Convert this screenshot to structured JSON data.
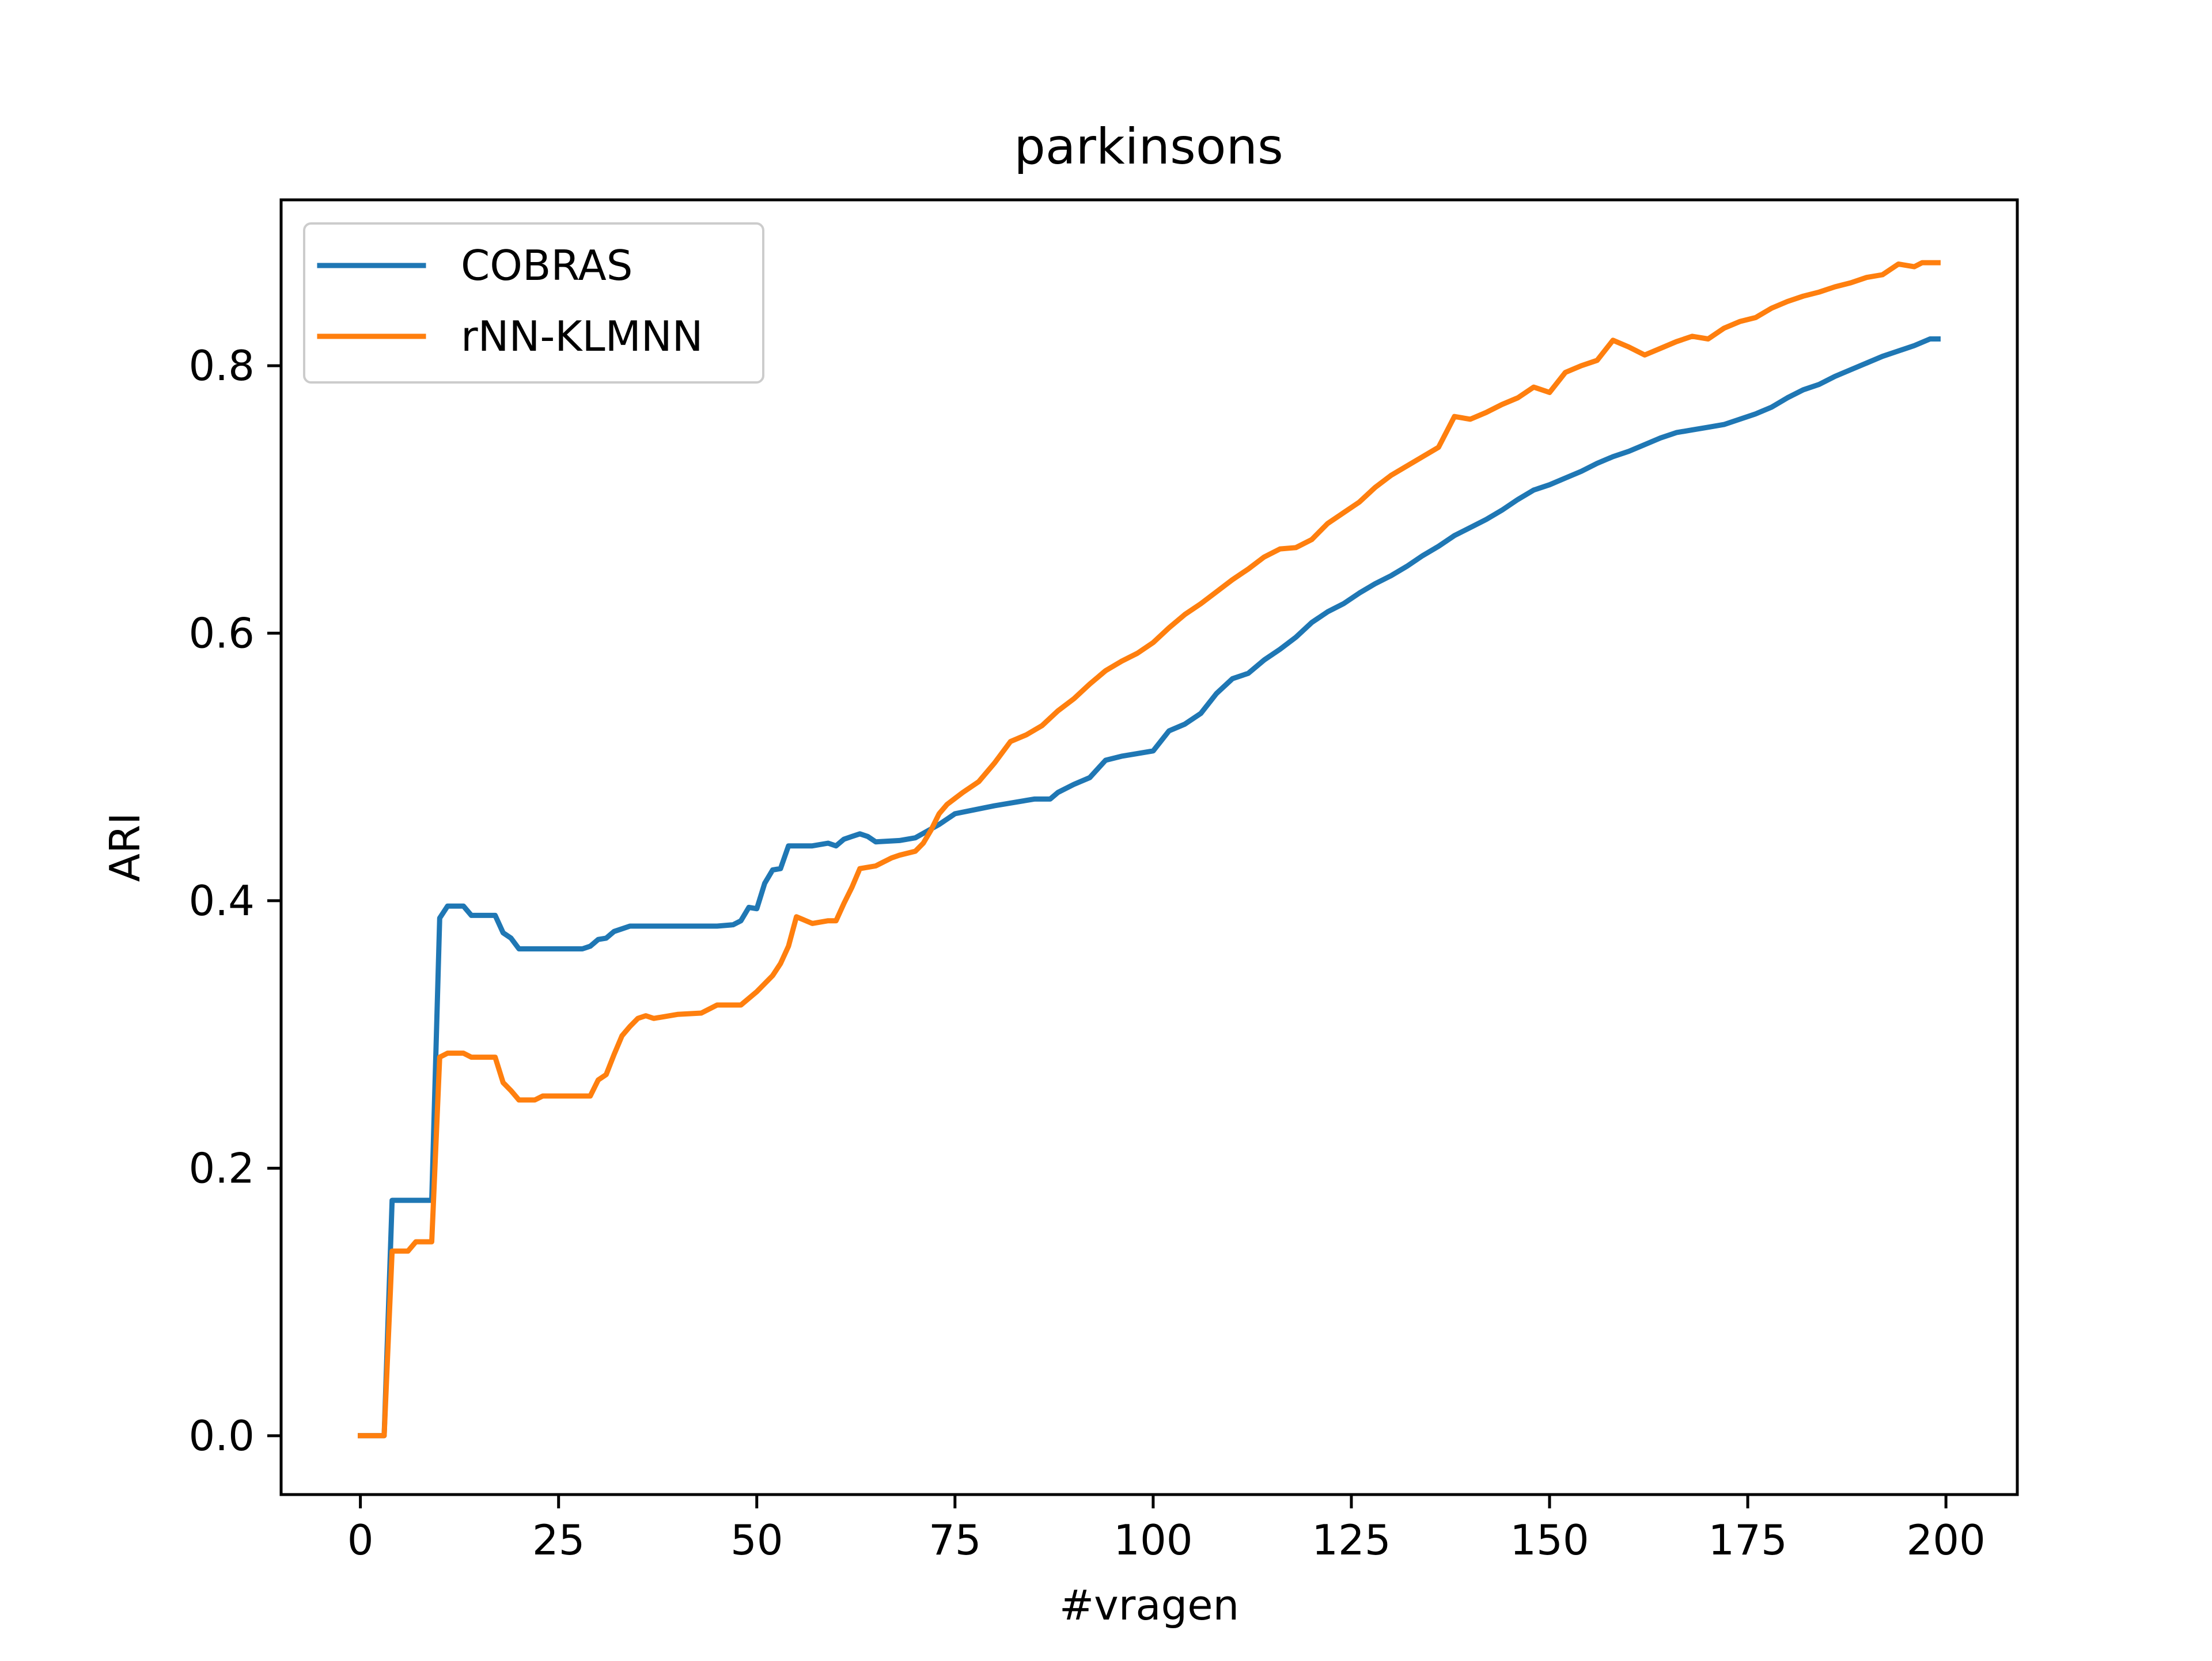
{
  "chart_data": {
    "type": "line",
    "title": "parkinsons",
    "xlabel": "#vragen",
    "ylabel": "ARI",
    "xlim": [
      -10,
      209
    ],
    "ylim": [
      -0.044,
      0.924
    ],
    "xticks": [
      0,
      25,
      50,
      75,
      100,
      125,
      150,
      175,
      200
    ],
    "yticks": [
      0.0,
      0.2,
      0.4,
      0.6,
      0.8
    ],
    "xtick_labels": [
      "0",
      "25",
      "50",
      "75",
      "100",
      "125",
      "150",
      "175",
      "200"
    ],
    "ytick_labels": [
      "0.0",
      "0.2",
      "0.4",
      "0.6",
      "0.8"
    ],
    "grid": false,
    "legend_position": "upper-left",
    "series": [
      {
        "name": "COBRAS",
        "color": "#1f77b4",
        "points": [
          [
            0,
            0.0
          ],
          [
            3,
            0.0
          ],
          [
            4,
            0.176
          ],
          [
            9,
            0.176
          ],
          [
            10,
            0.387
          ],
          [
            11,
            0.396
          ],
          [
            13,
            0.396
          ],
          [
            14,
            0.389
          ],
          [
            17,
            0.389
          ],
          [
            18,
            0.376
          ],
          [
            19,
            0.372
          ],
          [
            20,
            0.364
          ],
          [
            28,
            0.364
          ],
          [
            29,
            0.366
          ],
          [
            30,
            0.371
          ],
          [
            31,
            0.372
          ],
          [
            32,
            0.377
          ],
          [
            33,
            0.379
          ],
          [
            34,
            0.381
          ],
          [
            40,
            0.381
          ],
          [
            45,
            0.381
          ],
          [
            47,
            0.382
          ],
          [
            48,
            0.385
          ],
          [
            49,
            0.395
          ],
          [
            50,
            0.394
          ],
          [
            51,
            0.413
          ],
          [
            52,
            0.423
          ],
          [
            53,
            0.424
          ],
          [
            54,
            0.441
          ],
          [
            57,
            0.441
          ],
          [
            59,
            0.443
          ],
          [
            60,
            0.441
          ],
          [
            61,
            0.446
          ],
          [
            62,
            0.448
          ],
          [
            63,
            0.45
          ],
          [
            64,
            0.448
          ],
          [
            65,
            0.444
          ],
          [
            68,
            0.445
          ],
          [
            70,
            0.447
          ],
          [
            73,
            0.457
          ],
          [
            74,
            0.461
          ],
          [
            75,
            0.465
          ],
          [
            80,
            0.471
          ],
          [
            85,
            0.476
          ],
          [
            87,
            0.476
          ],
          [
            88,
            0.481
          ],
          [
            90,
            0.487
          ],
          [
            92,
            0.492
          ],
          [
            94,
            0.505
          ],
          [
            96,
            0.508
          ],
          [
            98,
            0.51
          ],
          [
            100,
            0.512
          ],
          [
            102,
            0.527
          ],
          [
            104,
            0.532
          ],
          [
            106,
            0.54
          ],
          [
            108,
            0.555
          ],
          [
            110,
            0.566
          ],
          [
            112,
            0.57
          ],
          [
            114,
            0.58
          ],
          [
            116,
            0.588
          ],
          [
            118,
            0.597
          ],
          [
            120,
            0.608
          ],
          [
            122,
            0.616
          ],
          [
            124,
            0.622
          ],
          [
            126,
            0.63
          ],
          [
            128,
            0.637
          ],
          [
            130,
            0.643
          ],
          [
            132,
            0.65
          ],
          [
            134,
            0.658
          ],
          [
            136,
            0.665
          ],
          [
            138,
            0.673
          ],
          [
            140,
            0.679
          ],
          [
            142,
            0.685
          ],
          [
            144,
            0.692
          ],
          [
            146,
            0.7
          ],
          [
            148,
            0.707
          ],
          [
            150,
            0.711
          ],
          [
            152,
            0.716
          ],
          [
            154,
            0.721
          ],
          [
            156,
            0.727
          ],
          [
            158,
            0.732
          ],
          [
            160,
            0.736
          ],
          [
            162,
            0.741
          ],
          [
            164,
            0.746
          ],
          [
            166,
            0.75
          ],
          [
            168,
            0.752
          ],
          [
            170,
            0.754
          ],
          [
            172,
            0.756
          ],
          [
            174,
            0.76
          ],
          [
            176,
            0.764
          ],
          [
            178,
            0.769
          ],
          [
            180,
            0.776
          ],
          [
            182,
            0.782
          ],
          [
            184,
            0.786
          ],
          [
            186,
            0.792
          ],
          [
            188,
            0.797
          ],
          [
            190,
            0.802
          ],
          [
            192,
            0.807
          ],
          [
            194,
            0.811
          ],
          [
            196,
            0.815
          ],
          [
            198,
            0.82
          ],
          [
            199,
            0.82
          ]
        ]
      },
      {
        "name": "rNN-KLMNN",
        "color": "#ff7f0e",
        "points": [
          [
            0,
            0.0
          ],
          [
            3,
            0.0
          ],
          [
            4,
            0.138
          ],
          [
            6,
            0.138
          ],
          [
            7,
            0.145
          ],
          [
            9,
            0.145
          ],
          [
            10,
            0.283
          ],
          [
            11,
            0.286
          ],
          [
            13,
            0.286
          ],
          [
            14,
            0.283
          ],
          [
            17,
            0.283
          ],
          [
            18,
            0.264
          ],
          [
            19,
            0.258
          ],
          [
            20,
            0.251
          ],
          [
            22,
            0.251
          ],
          [
            23,
            0.254
          ],
          [
            29,
            0.254
          ],
          [
            30,
            0.266
          ],
          [
            31,
            0.27
          ],
          [
            32,
            0.285
          ],
          [
            33,
            0.299
          ],
          [
            34,
            0.306
          ],
          [
            35,
            0.312
          ],
          [
            36,
            0.314
          ],
          [
            37,
            0.312
          ],
          [
            40,
            0.315
          ],
          [
            43,
            0.316
          ],
          [
            45,
            0.322
          ],
          [
            48,
            0.322
          ],
          [
            50,
            0.332
          ],
          [
            52,
            0.344
          ],
          [
            53,
            0.353
          ],
          [
            54,
            0.366
          ],
          [
            55,
            0.388
          ],
          [
            57,
            0.383
          ],
          [
            59,
            0.385
          ],
          [
            60,
            0.385
          ],
          [
            61,
            0.398
          ],
          [
            62,
            0.41
          ],
          [
            63,
            0.424
          ],
          [
            65,
            0.426
          ],
          [
            67,
            0.432
          ],
          [
            68,
            0.434
          ],
          [
            70,
            0.437
          ],
          [
            71,
            0.443
          ],
          [
            72,
            0.453
          ],
          [
            73,
            0.465
          ],
          [
            74,
            0.472
          ],
          [
            76,
            0.481
          ],
          [
            78,
            0.489
          ],
          [
            80,
            0.503
          ],
          [
            82,
            0.519
          ],
          [
            84,
            0.524
          ],
          [
            86,
            0.531
          ],
          [
            88,
            0.542
          ],
          [
            90,
            0.551
          ],
          [
            92,
            0.562
          ],
          [
            94,
            0.572
          ],
          [
            96,
            0.579
          ],
          [
            98,
            0.585
          ],
          [
            100,
            0.593
          ],
          [
            102,
            0.604
          ],
          [
            104,
            0.614
          ],
          [
            106,
            0.622
          ],
          [
            108,
            0.631
          ],
          [
            110,
            0.64
          ],
          [
            112,
            0.648
          ],
          [
            114,
            0.657
          ],
          [
            116,
            0.663
          ],
          [
            118,
            0.664
          ],
          [
            120,
            0.67
          ],
          [
            122,
            0.682
          ],
          [
            124,
            0.69
          ],
          [
            126,
            0.698
          ],
          [
            128,
            0.709
          ],
          [
            130,
            0.718
          ],
          [
            132,
            0.725
          ],
          [
            134,
            0.732
          ],
          [
            136,
            0.739
          ],
          [
            138,
            0.762
          ],
          [
            140,
            0.76
          ],
          [
            142,
            0.765
          ],
          [
            144,
            0.771
          ],
          [
            146,
            0.776
          ],
          [
            148,
            0.784
          ],
          [
            150,
            0.78
          ],
          [
            152,
            0.795
          ],
          [
            154,
            0.8
          ],
          [
            156,
            0.804
          ],
          [
            158,
            0.819
          ],
          [
            160,
            0.814
          ],
          [
            162,
            0.808
          ],
          [
            164,
            0.813
          ],
          [
            166,
            0.818
          ],
          [
            168,
            0.822
          ],
          [
            170,
            0.82
          ],
          [
            172,
            0.828
          ],
          [
            174,
            0.833
          ],
          [
            176,
            0.836
          ],
          [
            178,
            0.843
          ],
          [
            180,
            0.848
          ],
          [
            182,
            0.852
          ],
          [
            184,
            0.855
          ],
          [
            186,
            0.859
          ],
          [
            188,
            0.862
          ],
          [
            190,
            0.866
          ],
          [
            192,
            0.868
          ],
          [
            194,
            0.876
          ],
          [
            196,
            0.874
          ],
          [
            197,
            0.877
          ],
          [
            199,
            0.877
          ]
        ]
      }
    ]
  }
}
